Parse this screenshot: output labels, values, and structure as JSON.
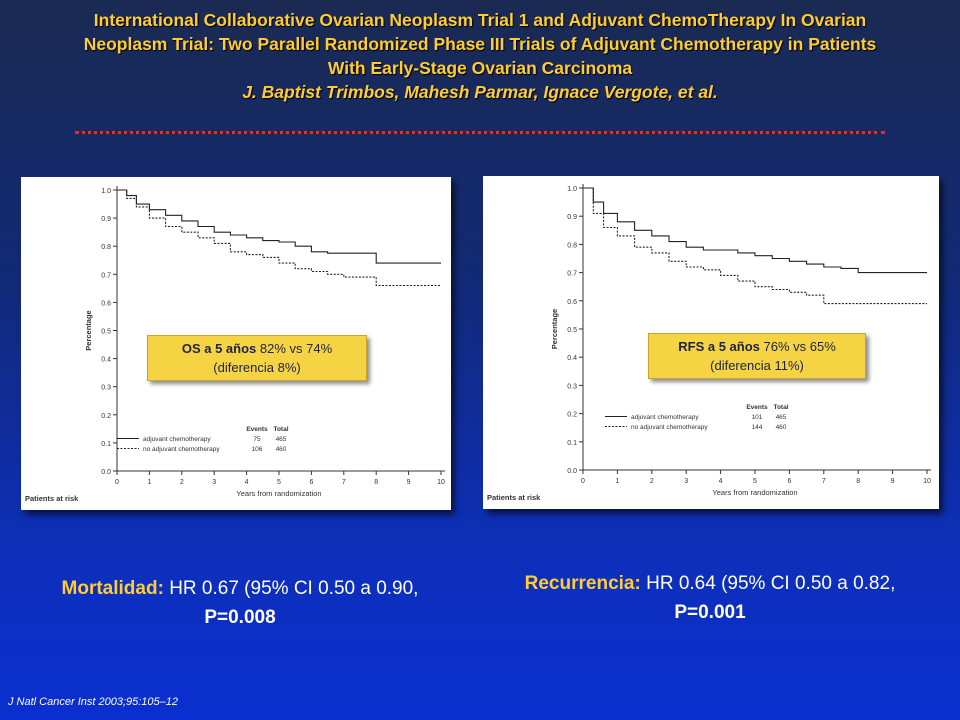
{
  "title": {
    "line1": "International Collaborative Ovarian Neoplasm Trial 1 and Adjuvant ChemoTherapy In Ovarian",
    "line2": "Neoplasm Trial: Two Parallel Randomized Phase III Trials of Adjuvant Chemotherapy in Patients",
    "line3": "With Early-Stage Ovarian Carcinoma",
    "authors": "J. Baptist Trimbos, Mahesh Parmar, Ignace Vergote, et al."
  },
  "left_callout": {
    "metric": "OS a 5 años",
    "values": "82% vs 74%",
    "diff": "(diferencia 8%)"
  },
  "right_callout": {
    "metric": "RFS a 5 años",
    "values": "76% vs 65%",
    "diff": "(diferencia 11%)"
  },
  "left_result": {
    "label": "Mortalidad:",
    "text": "HR 0.67 (95% CI  0.50 a 0.90,",
    "p": "P=0.008"
  },
  "right_result": {
    "label": "Recurrencia:",
    "text": "HR 0.64 (95% CI 0.50 a 0.82,",
    "p": "P=0.001"
  },
  "citation": "J Natl Cancer Inst 2003;95:105–12",
  "colors": {
    "title": "#ffcc33",
    "callout": "#f5d343",
    "rule": "#e0322a"
  },
  "chart_data": [
    {
      "type": "line",
      "xlabel": "Years from randomization",
      "ylabel": "Percentage",
      "xlim": [
        0,
        10
      ],
      "ylim": [
        0,
        1.0
      ],
      "xticks": [
        "0",
        "1",
        "2",
        "3",
        "4",
        "5",
        "6",
        "7",
        "8",
        "9",
        "10"
      ],
      "yticks": [
        "0.0",
        "0.1",
        "0.2",
        "0.3",
        "0.4",
        "0.5",
        "0.6",
        "0.7",
        "0.8",
        "0.9",
        "1.0"
      ],
      "risk_label": "Patients at risk",
      "legend_header": [
        "Events",
        "Total"
      ],
      "series": [
        {
          "name": "adjuvant chemotherapy",
          "style": "solid",
          "events": "75",
          "total": "465",
          "x": [
            0,
            0.3,
            0.6,
            1.0,
            1.5,
            2.0,
            2.5,
            3.0,
            3.5,
            4.0,
            4.5,
            5.0,
            5.5,
            6.0,
            6.5,
            7.0,
            7.5,
            8.0,
            9.0,
            10.0
          ],
          "y": [
            1.0,
            0.98,
            0.95,
            0.93,
            0.91,
            0.89,
            0.87,
            0.85,
            0.84,
            0.83,
            0.82,
            0.815,
            0.8,
            0.78,
            0.775,
            0.775,
            0.775,
            0.74,
            0.74,
            0.74
          ]
        },
        {
          "name": "no adjuvant chemotherapy",
          "style": "dashed",
          "events": "106",
          "total": "460",
          "x": [
            0,
            0.3,
            0.6,
            1.0,
            1.5,
            2.0,
            2.5,
            3.0,
            3.5,
            4.0,
            4.5,
            5.0,
            5.5,
            6.0,
            6.5,
            7.0,
            7.5,
            8.0,
            9.0,
            10.0
          ],
          "y": [
            1.0,
            0.97,
            0.94,
            0.9,
            0.87,
            0.85,
            0.83,
            0.81,
            0.78,
            0.77,
            0.76,
            0.74,
            0.72,
            0.71,
            0.7,
            0.69,
            0.69,
            0.66,
            0.66,
            0.66
          ]
        }
      ]
    },
    {
      "type": "line",
      "xlabel": "Years from randomization",
      "ylabel": "Percentage",
      "xlim": [
        0,
        10
      ],
      "ylim": [
        0,
        1.0
      ],
      "xticks": [
        "0",
        "1",
        "2",
        "3",
        "4",
        "5",
        "6",
        "7",
        "8",
        "9",
        "10"
      ],
      "yticks": [
        "0.0",
        "0.1",
        "0.2",
        "0.3",
        "0.4",
        "0.5",
        "0.6",
        "0.7",
        "0.8",
        "0.9",
        "1.0"
      ],
      "risk_label": "Patients at risk",
      "legend_header": [
        "Events",
        "Total"
      ],
      "series": [
        {
          "name": "adjuvant chemotherapy",
          "style": "solid",
          "events": "101",
          "total": "465",
          "x": [
            0,
            0.3,
            0.6,
            1.0,
            1.5,
            2.0,
            2.5,
            3.0,
            3.5,
            4.0,
            4.5,
            5.0,
            5.5,
            6.0,
            6.5,
            7.0,
            7.5,
            8.0,
            9.0,
            10.0
          ],
          "y": [
            1.0,
            0.95,
            0.91,
            0.88,
            0.85,
            0.83,
            0.81,
            0.79,
            0.78,
            0.78,
            0.77,
            0.76,
            0.75,
            0.74,
            0.73,
            0.72,
            0.715,
            0.7,
            0.7,
            0.7
          ]
        },
        {
          "name": "no adjuvant chemotherapy",
          "style": "dashed",
          "events": "144",
          "total": "460",
          "x": [
            0,
            0.3,
            0.6,
            1.0,
            1.5,
            2.0,
            2.5,
            3.0,
            3.5,
            4.0,
            4.5,
            5.0,
            5.5,
            6.0,
            6.5,
            7.0,
            7.5,
            8.0,
            9.0,
            10.0
          ],
          "y": [
            1.0,
            0.91,
            0.86,
            0.83,
            0.79,
            0.77,
            0.74,
            0.72,
            0.71,
            0.69,
            0.67,
            0.65,
            0.64,
            0.63,
            0.62,
            0.59,
            0.59,
            0.59,
            0.59,
            0.59
          ]
        }
      ]
    }
  ]
}
